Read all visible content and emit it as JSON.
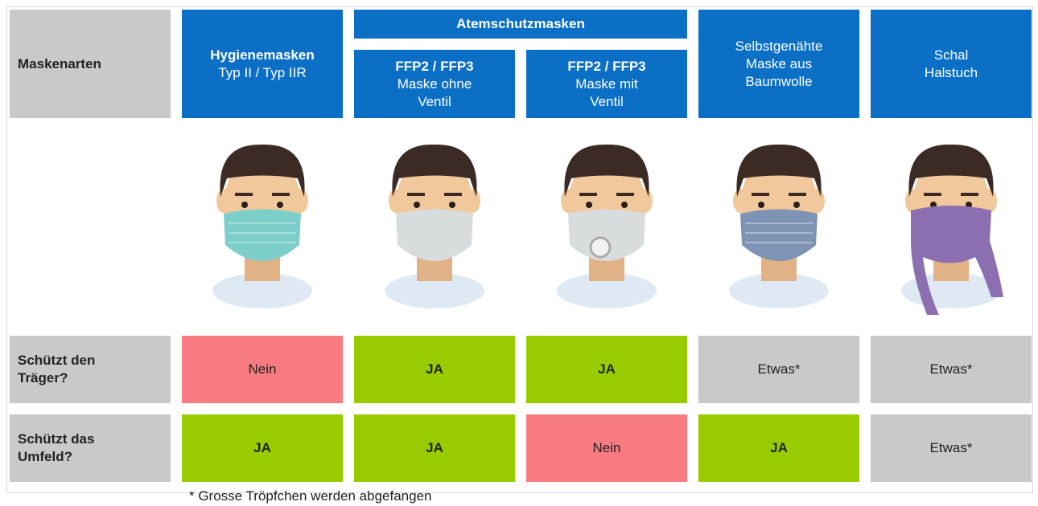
{
  "table": {
    "row_header": "Maskenarten",
    "group_header": "Atemschutzmasken",
    "columns": [
      {
        "title": "Hygienemasken",
        "lines": [
          "Typ II / Typ IIR"
        ]
      },
      {
        "title": "FFP2 / FFP3",
        "lines": [
          "Maske ohne",
          "Ventil"
        ]
      },
      {
        "title": "FFP2 / FFP3",
        "lines": [
          "Maske mit",
          "Ventil"
        ]
      },
      {
        "lines": [
          "Selbstgenähte",
          "Maske aus",
          "Baumwolle"
        ]
      },
      {
        "lines": [
          "Schal",
          "Halstuch"
        ]
      }
    ],
    "rows": [
      {
        "label": [
          "Schützt den",
          "Träger?"
        ],
        "cells": [
          {
            "text": "Nein",
            "color": "#f77b80"
          },
          {
            "text": "JA",
            "color": "#99cc00"
          },
          {
            "text": "JA",
            "color": "#99cc00"
          },
          {
            "text": "Etwas*",
            "color": "#c9c9c9"
          },
          {
            "text": "Etwas*",
            "color": "#c9c9c9"
          }
        ]
      },
      {
        "label": [
          "Schützt das",
          "Umfeld?"
        ],
        "cells": [
          {
            "text": "JA",
            "color": "#99cc00"
          },
          {
            "text": "JA",
            "color": "#99cc00"
          },
          {
            "text": "Nein",
            "color": "#f77b80"
          },
          {
            "text": "JA",
            "color": "#99cc00"
          },
          {
            "text": "Etwas*",
            "color": "#c9c9c9"
          }
        ]
      }
    ]
  },
  "footnote": "* Grosse Tröpfchen werden abgefangen"
}
